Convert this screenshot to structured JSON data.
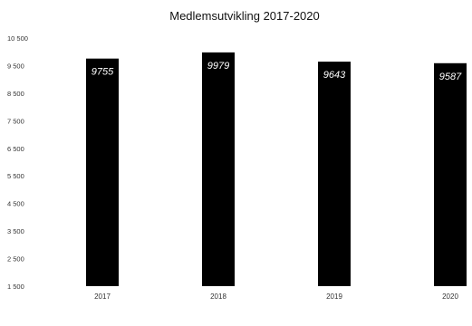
{
  "chart_data": {
    "type": "bar",
    "title": "Medlemsutvikling 2017-2020",
    "categories": [
      "2017",
      "2018",
      "2019",
      "2020"
    ],
    "values": [
      9755,
      9979,
      9643,
      9587
    ],
    "data_labels": [
      "9755",
      "9979",
      "9643",
      "9587"
    ],
    "ylim": [
      1500,
      10500
    ],
    "yticks": [
      1500,
      2500,
      3500,
      4500,
      5500,
      6500,
      7500,
      8500,
      9500,
      10500
    ],
    "ytick_labels": [
      "1 500",
      "2 500",
      "3 500",
      "4 500",
      "5 500",
      "6 500",
      "7 500",
      "8 500",
      "9 500",
      "10 500"
    ],
    "grid": false,
    "legend": "none",
    "bar_color": "#000000",
    "label_color": "#ffffff"
  }
}
